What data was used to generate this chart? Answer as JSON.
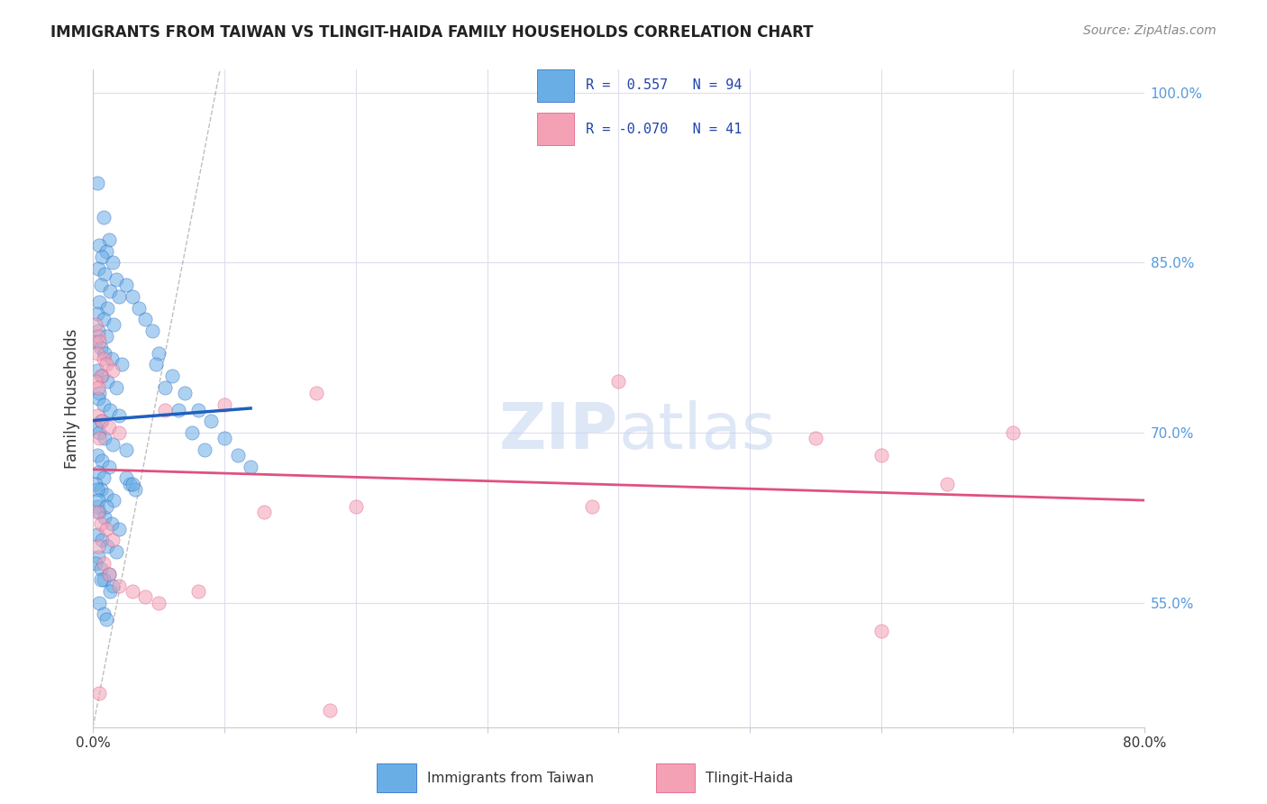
{
  "title": "IMMIGRANTS FROM TAIWAN VS TLINGIT-HAIDA FAMILY HOUSEHOLDS CORRELATION CHART",
  "source": "Source: ZipAtlas.com",
  "ylabel": "Family Households",
  "legend_labels": [
    "Immigrants from Taiwan",
    "Tlingit-Haida"
  ],
  "blue_color": "#6aaee6",
  "pink_color": "#f4a0b5",
  "blue_line_color": "#2060c0",
  "pink_line_color": "#e05080",
  "right_axis_color": "#5599dd",
  "background_color": "#ffffff",
  "grid_color": "#ddddee",
  "blue_scatter": [
    [
      0.3,
      92.0
    ],
    [
      0.8,
      89.0
    ],
    [
      1.2,
      87.0
    ],
    [
      0.5,
      86.5
    ],
    [
      1.0,
      86.0
    ],
    [
      0.7,
      85.5
    ],
    [
      1.5,
      85.0
    ],
    [
      0.4,
      84.5
    ],
    [
      0.9,
      84.0
    ],
    [
      1.8,
      83.5
    ],
    [
      0.6,
      83.0
    ],
    [
      1.3,
      82.5
    ],
    [
      2.0,
      82.0
    ],
    [
      0.5,
      81.5
    ],
    [
      1.1,
      81.0
    ],
    [
      0.3,
      80.5
    ],
    [
      0.8,
      80.0
    ],
    [
      1.6,
      79.5
    ],
    [
      0.4,
      79.0
    ],
    [
      1.0,
      78.5
    ],
    [
      2.5,
      83.0
    ],
    [
      3.0,
      82.0
    ],
    [
      3.5,
      81.0
    ],
    [
      4.0,
      80.0
    ],
    [
      4.5,
      79.0
    ],
    [
      0.2,
      78.0
    ],
    [
      0.6,
      77.5
    ],
    [
      0.9,
      77.0
    ],
    [
      1.4,
      76.5
    ],
    [
      2.2,
      76.0
    ],
    [
      0.3,
      75.5
    ],
    [
      0.7,
      75.0
    ],
    [
      1.1,
      74.5
    ],
    [
      1.8,
      74.0
    ],
    [
      0.5,
      73.5
    ],
    [
      0.4,
      73.0
    ],
    [
      0.8,
      72.5
    ],
    [
      1.3,
      72.0
    ],
    [
      2.0,
      71.5
    ],
    [
      0.6,
      71.0
    ],
    [
      0.2,
      70.5
    ],
    [
      0.5,
      70.0
    ],
    [
      0.9,
      69.5
    ],
    [
      1.5,
      69.0
    ],
    [
      2.5,
      68.5
    ],
    [
      0.3,
      68.0
    ],
    [
      0.7,
      67.5
    ],
    [
      1.2,
      67.0
    ],
    [
      0.4,
      66.5
    ],
    [
      0.8,
      66.0
    ],
    [
      0.2,
      65.5
    ],
    [
      0.6,
      65.0
    ],
    [
      1.0,
      64.5
    ],
    [
      1.6,
      64.0
    ],
    [
      0.3,
      63.5
    ],
    [
      5.0,
      77.0
    ],
    [
      6.0,
      75.0
    ],
    [
      7.0,
      73.5
    ],
    [
      8.0,
      72.0
    ],
    [
      9.0,
      71.0
    ],
    [
      10.0,
      69.5
    ],
    [
      0.5,
      63.0
    ],
    [
      0.9,
      62.5
    ],
    [
      1.4,
      62.0
    ],
    [
      2.0,
      61.5
    ],
    [
      0.3,
      61.0
    ],
    [
      0.7,
      60.5
    ],
    [
      1.1,
      60.0
    ],
    [
      1.8,
      59.5
    ],
    [
      0.4,
      59.0
    ],
    [
      0.2,
      58.5
    ],
    [
      0.6,
      58.0
    ],
    [
      1.2,
      57.5
    ],
    [
      0.8,
      57.0
    ],
    [
      1.5,
      56.5
    ],
    [
      0.3,
      65.0
    ],
    [
      2.8,
      65.5
    ],
    [
      3.2,
      65.0
    ],
    [
      0.4,
      64.0
    ],
    [
      1.0,
      63.5
    ],
    [
      4.8,
      76.0
    ],
    [
      5.5,
      74.0
    ],
    [
      6.5,
      72.0
    ],
    [
      7.5,
      70.0
    ],
    [
      8.5,
      68.5
    ],
    [
      11.0,
      68.0
    ],
    [
      12.0,
      67.0
    ],
    [
      2.5,
      66.0
    ],
    [
      3.0,
      65.5
    ],
    [
      0.6,
      57.0
    ],
    [
      1.3,
      56.0
    ],
    [
      0.5,
      55.0
    ],
    [
      0.8,
      54.0
    ],
    [
      1.0,
      53.5
    ]
  ],
  "pink_scatter": [
    [
      0.2,
      79.5
    ],
    [
      0.4,
      78.5
    ],
    [
      0.5,
      78.0
    ],
    [
      0.3,
      77.0
    ],
    [
      0.8,
      76.5
    ],
    [
      1.0,
      76.0
    ],
    [
      1.5,
      75.5
    ],
    [
      0.6,
      75.0
    ],
    [
      0.2,
      74.5
    ],
    [
      0.4,
      74.0
    ],
    [
      0.3,
      71.5
    ],
    [
      0.7,
      71.0
    ],
    [
      1.2,
      70.5
    ],
    [
      2.0,
      70.0
    ],
    [
      0.5,
      69.5
    ],
    [
      5.5,
      72.0
    ],
    [
      10.0,
      72.5
    ],
    [
      17.0,
      73.5
    ],
    [
      40.0,
      74.5
    ],
    [
      55.0,
      69.5
    ],
    [
      60.0,
      68.0
    ],
    [
      65.0,
      65.5
    ],
    [
      70.0,
      70.0
    ],
    [
      38.0,
      63.5
    ],
    [
      0.3,
      63.0
    ],
    [
      0.6,
      62.0
    ],
    [
      1.0,
      61.5
    ],
    [
      1.5,
      60.5
    ],
    [
      0.4,
      60.0
    ],
    [
      0.8,
      58.5
    ],
    [
      1.2,
      57.5
    ],
    [
      2.0,
      56.5
    ],
    [
      3.0,
      56.0
    ],
    [
      4.0,
      55.5
    ],
    [
      5.0,
      55.0
    ],
    [
      8.0,
      56.0
    ],
    [
      13.0,
      63.0
    ],
    [
      20.0,
      63.5
    ],
    [
      0.5,
      47.0
    ],
    [
      18.0,
      45.5
    ],
    [
      60.0,
      52.5
    ]
  ],
  "xlim": [
    0,
    80
  ],
  "ylim": [
    44,
    102
  ],
  "x_ticks": [
    0,
    10,
    20,
    30,
    40,
    50,
    60,
    70,
    80
  ],
  "x_tick_labels": [
    "0.0%",
    "",
    "",
    "",
    "",
    "",
    "",
    "",
    "80.0%"
  ],
  "y_ticks_right": [
    55,
    70,
    85,
    100
  ],
  "y_tick_labels_right": [
    "55.0%",
    "70.0%",
    "85.0%",
    "100.0%"
  ],
  "legend_r1": "R =  0.557",
  "legend_n1": "N = 94",
  "legend_r2": "R = -0.070",
  "legend_n2": "N = 41"
}
